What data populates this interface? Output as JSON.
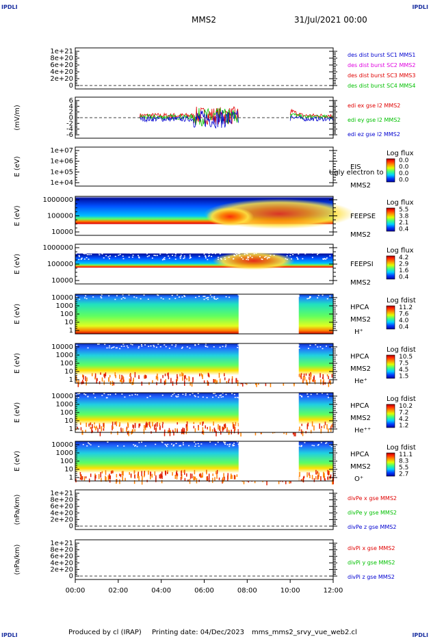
{
  "header": {
    "corner_left_top": "IPDLI",
    "corner_right_top": "IPDLI",
    "corner_left_bottom": "IPDLI",
    "corner_right_bottom": "IPDLI",
    "title": "MMS2",
    "date": "31/Jul/2021 00:00"
  },
  "footer": {
    "produced": "Produced by cl (IRAP)",
    "printing": "Printing date: 04/Dec/2023",
    "file": "mms_mms2_srvy_vue_web2.cl"
  },
  "colors": {
    "red": "#e00000",
    "green": "#00c000",
    "blue": "#0000d0",
    "magenta": "#e000e0"
  },
  "chart_data": [
    {
      "id": "des-dist",
      "type": "line",
      "ylabel": "",
      "yticks": [
        "1e+21",
        "8e+20",
        "6e+20",
        "4e+20",
        "2e+20",
        "0"
      ],
      "series": [
        {
          "name": "des dist burst SC1 MMS1",
          "color": "#0000d0",
          "values": []
        },
        {
          "name": "des dist burst SC2 MMS2",
          "color": "#e000e0",
          "values": []
        },
        {
          "name": "des dist burst SC3 MMS3",
          "color": "#e00000",
          "values": []
        },
        {
          "name": "des dist burst SC4 MMS4",
          "color": "#00c000",
          "values": []
        }
      ]
    },
    {
      "id": "edi",
      "type": "line",
      "ylabel": "(mV/m)",
      "yticks": [
        "6",
        "4",
        "2",
        "0",
        "-2",
        "-4",
        "-6"
      ],
      "ylim": [
        -6,
        6
      ],
      "series": [
        {
          "name": "edi ex gse l2 MMS2",
          "color": "#e00000"
        },
        {
          "name": "edi ey gse l2 MMS2",
          "color": "#00c000"
        },
        {
          "name": "edi ez gse l2 MMS2",
          "color": "#0000d0"
        }
      ]
    },
    {
      "id": "eis",
      "type": "heatmap",
      "ylabel": "E (eV)",
      "yticks": [
        "1e+07",
        "1e+06",
        "1e+05",
        "1e+04"
      ],
      "labels": [
        "EIS",
        "MMS2"
      ],
      "overlay": "Ugly electron to",
      "cbar_title": "Log flux",
      "cbar_ticks": [
        "0.0",
        "0.0",
        "0.0",
        "0.0"
      ]
    },
    {
      "id": "feepse",
      "type": "heatmap",
      "ylabel": "E (eV)",
      "yticks": [
        "1000000",
        "100000",
        "10000"
      ],
      "labels": [
        "FEEPSE",
        "MMS2"
      ],
      "cbar_title": "Log flux",
      "cbar_ticks": [
        "5.5",
        "3.8",
        "2.1",
        "0.4"
      ]
    },
    {
      "id": "feepsi",
      "type": "heatmap",
      "ylabel": "E (eV)",
      "yticks": [
        "1000000",
        "100000",
        "10000"
      ],
      "labels": [
        "FEEPSI",
        "MMS2"
      ],
      "cbar_title": "Log flux",
      "cbar_ticks": [
        "4.2",
        "2.9",
        "1.6",
        "0.4"
      ]
    },
    {
      "id": "hpca-h",
      "type": "heatmap",
      "ylabel": "E (eV)",
      "yticks": [
        "10000",
        "1000",
        "100",
        "10",
        "1"
      ],
      "labels": [
        "HPCA",
        "MMS2",
        "H⁺"
      ],
      "cbar_title": "Log fdist",
      "cbar_ticks": [
        "11.2",
        "7.6",
        "4.0",
        "0.4"
      ]
    },
    {
      "id": "hpca-he",
      "type": "heatmap",
      "ylabel": "E (eV)",
      "yticks": [
        "10000",
        "1000",
        "100",
        "10",
        "1"
      ],
      "labels": [
        "HPCA",
        "MMS2",
        "He⁺"
      ],
      "cbar_title": "Log fdist",
      "cbar_ticks": [
        "10.5",
        "7.5",
        "4.5",
        "1.5"
      ]
    },
    {
      "id": "hpca-hepp",
      "type": "heatmap",
      "ylabel": "E (eV)",
      "yticks": [
        "10000",
        "1000",
        "100",
        "10",
        "1"
      ],
      "labels": [
        "HPCA",
        "MMS2",
        "He⁺⁺"
      ],
      "cbar_title": "Log fdist",
      "cbar_ticks": [
        "10.2",
        "7.2",
        "4.2",
        "1.2"
      ]
    },
    {
      "id": "hpca-o",
      "type": "heatmap",
      "ylabel": "E (eV)",
      "yticks": [
        "10000",
        "1000",
        "100",
        "10",
        "1"
      ],
      "labels": [
        "HPCA",
        "MMS2",
        "O⁺"
      ],
      "cbar_title": "Log fdist",
      "cbar_ticks": [
        "11.1",
        "8.3",
        "5.5",
        "2.7"
      ]
    },
    {
      "id": "divpe",
      "type": "line",
      "ylabel": "(nPa/km)",
      "yticks": [
        "1e+21",
        "8e+20",
        "6e+20",
        "4e+20",
        "2e+20",
        "0"
      ],
      "series": [
        {
          "name": "divPe x gse MMS2",
          "color": "#e00000"
        },
        {
          "name": "divPe y gse MMS2",
          "color": "#00c000"
        },
        {
          "name": "divPe z gse MMS2",
          "color": "#0000d0"
        }
      ]
    },
    {
      "id": "divpi",
      "type": "line",
      "ylabel": "(nPa/km)",
      "yticks": [
        "1e+21",
        "8e+20",
        "6e+20",
        "4e+20",
        "2e+20",
        "0"
      ],
      "series": [
        {
          "name": "divPi x gse MMS2",
          "color": "#e00000"
        },
        {
          "name": "divPi y gse MMS2",
          "color": "#00c000"
        },
        {
          "name": "divPi z gse MMS2",
          "color": "#0000d0"
        }
      ]
    }
  ],
  "xaxis": {
    "ticks": [
      "00:00",
      "02:00",
      "04:00",
      "06:00",
      "08:00",
      "10:00",
      "12:00"
    ],
    "range_hours": [
      0,
      12
    ]
  },
  "gaps_hours": [
    [
      7.6,
      10.4
    ]
  ]
}
